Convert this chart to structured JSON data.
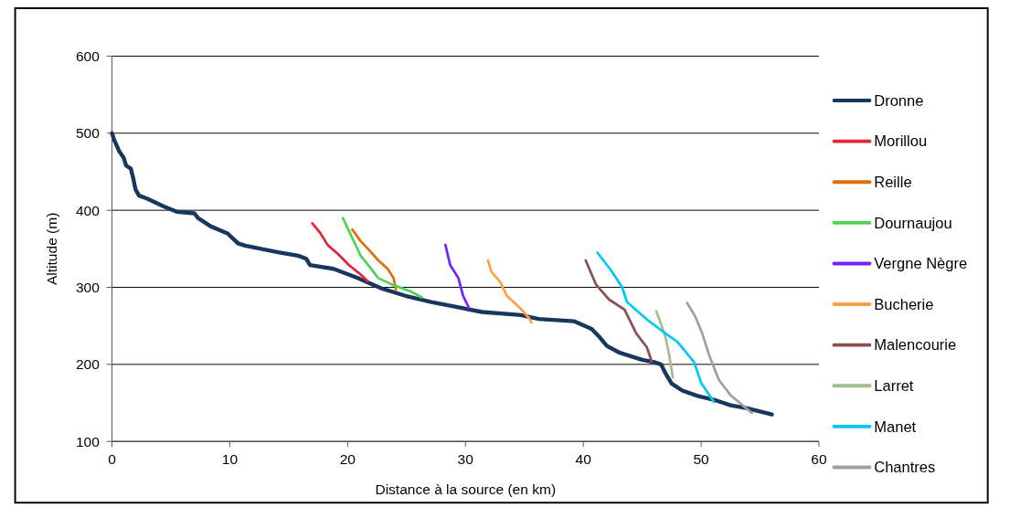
{
  "chart_data": {
    "type": "line",
    "xlabel": "Distance à la source (en km)",
    "ylabel": "Altitude (m)",
    "xlim": [
      0,
      60
    ],
    "xticks": [
      0,
      10,
      20,
      30,
      40,
      50,
      60
    ],
    "ylim": [
      100,
      600
    ],
    "yticks": [
      100,
      200,
      300,
      400,
      500,
      600
    ],
    "grid": "y",
    "legend": "right",
    "marker": "none",
    "line_style": "solid",
    "series": [
      {
        "name": "Dronne",
        "color": "#17375e",
        "x": [
          0,
          0.2,
          0.6,
          1,
          1.2,
          1.6,
          1.8,
          2,
          2.3,
          3,
          4.4,
          5.5,
          7,
          7.3,
          8.4,
          9.8,
          10.7,
          11.3,
          14.3,
          15.8,
          16.5,
          16.8,
          18.8,
          20.7,
          22.8,
          24.9,
          27.1,
          29.4,
          31.4,
          34.7,
          36.2,
          39.2,
          40.7,
          41.4,
          42,
          43.1,
          45,
          46,
          46.6,
          46.95,
          47.5,
          48.4,
          49.7,
          51.3,
          52.5,
          53.9,
          56
        ],
        "values": [
          500,
          491,
          477,
          468,
          458,
          454,
          442,
          427,
          419,
          415,
          405,
          398,
          396,
          390,
          379,
          370,
          357,
          354,
          345,
          341,
          337,
          329,
          324,
          313,
          299,
          289,
          281,
          274,
          268,
          264,
          259,
          256,
          246,
          235,
          224,
          215,
          206,
          203,
          200,
          189,
          175,
          166,
          159,
          153,
          147,
          143,
          135
        ]
      },
      {
        "name": "Morillou",
        "color": "#e3263c",
        "x": [
          17,
          17.7,
          18.3,
          19.2,
          20.1,
          21,
          21.7
        ],
        "values": [
          383,
          370,
          355,
          343,
          329,
          318,
          308
        ]
      },
      {
        "name": "Reille",
        "color": "#e46c0a",
        "x": [
          20.4,
          21.1,
          21.9,
          22.6,
          23.4,
          23.9,
          24.1
        ],
        "values": [
          375,
          360,
          347,
          335,
          324,
          312,
          297
        ]
      },
      {
        "name": "Dournaujou",
        "color": "#4fd454",
        "x": [
          19.6,
          20.3,
          21.1,
          21.9,
          22.6,
          23.7,
          25.3,
          26.3
        ],
        "values": [
          390,
          367,
          341,
          326,
          312,
          304,
          295,
          287
        ]
      },
      {
        "name": "Vergne Nègre",
        "color": "#7a1fff",
        "x": [
          28.3,
          28.7,
          29.4,
          29.8,
          30.3
        ],
        "values": [
          355,
          329,
          312,
          289,
          273
        ]
      },
      {
        "name": "Bucherie",
        "color": "#ffa040",
        "x": [
          31.9,
          32.2,
          33,
          33.5,
          34.7,
          35.4,
          35.6
        ],
        "values": [
          335,
          320,
          306,
          289,
          272,
          260,
          254
        ]
      },
      {
        "name": "Malencourie",
        "color": "#8b5050",
        "x": [
          40.2,
          41.1,
          42.2,
          43.5,
          44.5,
          45.4,
          45.8
        ],
        "values": [
          335,
          303,
          284,
          271,
          240,
          222,
          204
        ]
      },
      {
        "name": "Larret",
        "color": "#a0c090",
        "x": [
          46.2,
          46.6,
          47,
          47.3,
          47.6
        ],
        "values": [
          269,
          252,
          234,
          211,
          183
        ]
      },
      {
        "name": "Manet",
        "color": "#00c8f8",
        "x": [
          41.2,
          42.4,
          43.3,
          43.7,
          45.5,
          47,
          48,
          49.4,
          50,
          51.1
        ],
        "values": [
          345,
          321,
          300,
          281,
          257,
          240,
          229,
          203,
          176,
          151
        ]
      },
      {
        "name": "Chantres",
        "color": "#a0a0a0",
        "x": [
          48.8,
          49.5,
          50.1,
          50.7,
          51.5,
          52.5,
          54.3
        ],
        "values": [
          280,
          262,
          240,
          211,
          180,
          160,
          137
        ]
      }
    ]
  }
}
